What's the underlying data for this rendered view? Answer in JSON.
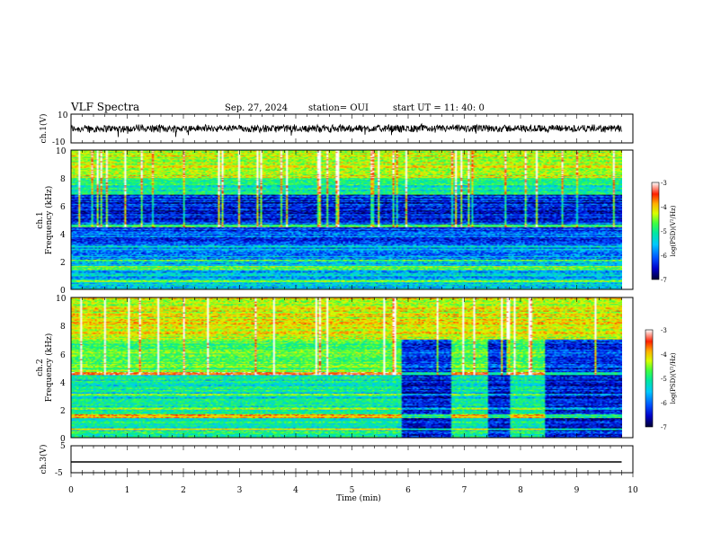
{
  "header": {
    "title": "VLF Spectra",
    "date": "Sep. 27, 2024",
    "station": "station= OUI",
    "start": "start  UT =  11: 40: 0"
  },
  "chart_data": [
    {
      "type": "line",
      "name": "ch1-waveform",
      "ylabel": "ch.1(V)",
      "xlim": [
        0,
        10
      ],
      "ylim": [
        -10,
        10
      ],
      "yticks": [
        "10",
        "-10"
      ],
      "amplitude_typical": 3
    },
    {
      "type": "heatmap",
      "name": "ch1-spectrogram",
      "ylabel_line1": "ch.1",
      "ylabel_line2": "Frequency (kHz)",
      "xlim": [
        0,
        9.8
      ],
      "ylim": [
        0,
        10
      ],
      "yticks": [
        "0",
        "2",
        "4",
        "6",
        "8",
        "10"
      ],
      "colorbar": {
        "label": "log(PSD)(V²/Hz)",
        "range": [
          -7,
          -3
        ],
        "ticks": [
          "-3",
          "-4",
          "-5",
          "-6",
          "-7"
        ]
      }
    },
    {
      "type": "heatmap",
      "name": "ch2-spectrogram",
      "ylabel_line1": "ch.2",
      "ylabel_line2": "Frequency (kHz)",
      "xlim": [
        0,
        9.8
      ],
      "ylim": [
        0,
        10
      ],
      "yticks": [
        "0",
        "2",
        "4",
        "6",
        "8",
        "10"
      ],
      "quiet_intervals_min": [
        [
          5.85,
          6.75
        ],
        [
          7.4,
          7.8
        ],
        [
          8.4,
          9.8
        ]
      ],
      "colorbar": {
        "label": "log(PSD)(V²/Hz)",
        "range": [
          -7,
          -3
        ],
        "ticks": [
          "-3",
          "-4",
          "-5",
          "-6",
          "-7"
        ]
      }
    },
    {
      "type": "line",
      "name": "ch3-waveform",
      "ylabel": "ch.3(V)",
      "xlim": [
        0,
        10
      ],
      "ylim": [
        -5,
        5
      ],
      "yticks": [
        "5",
        "0",
        "-5"
      ],
      "constant_value": -1
    }
  ],
  "xaxis": {
    "label": "Time (min)",
    "range": [
      0,
      10
    ],
    "ticks": [
      "0",
      "1",
      "2",
      "3",
      "4",
      "5",
      "6",
      "7",
      "8",
      "9",
      "10"
    ]
  },
  "colors": {
    "scale": [
      "#000033",
      "#0000c8",
      "#0050ff",
      "#00c8ff",
      "#00e8a0",
      "#40ff40",
      "#d8ff00",
      "#ffb000",
      "#ff2000",
      "#ffffff"
    ]
  }
}
